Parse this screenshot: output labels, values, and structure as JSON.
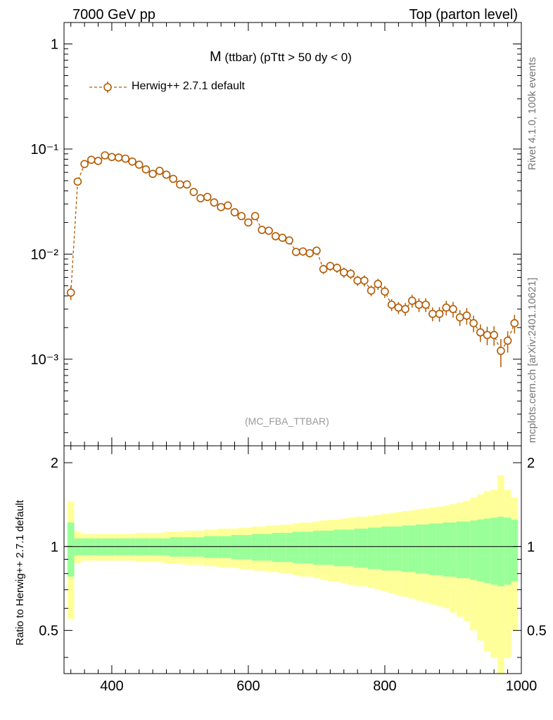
{
  "header": {
    "left": "7000 GeV pp",
    "right": "Top (parton level)"
  },
  "sidebar": {
    "rivet": "Rivet 4.1.0,  100k events",
    "source": "mcplots.cern.ch [arXiv:2401.10621]"
  },
  "colors": {
    "series": "#b35900",
    "band_outer": "#ffff99",
    "band_inner": "#99ff99"
  },
  "chart_data": {
    "type": "line",
    "title_main": "M",
    "title_sub": "(ttbar) (pTtt > 50 dy < 0)",
    "analysis_tag": "(MC_FBA_TTBAR)",
    "xlim": [
      330,
      1000
    ],
    "x_ticks": [
      "400",
      "600",
      "800",
      "1000"
    ],
    "upper": {
      "yscale": "log",
      "ylim": [
        0.00015,
        1.6
      ],
      "y_ticks": [
        "1",
        "10⁻¹",
        "10⁻²",
        "10⁻³"
      ],
      "series": [
        {
          "name": "Herwig++ 2.7.1 default",
          "x": [
            340,
            350,
            360,
            370,
            380,
            390,
            400,
            410,
            420,
            430,
            440,
            450,
            460,
            470,
            480,
            490,
            500,
            510,
            520,
            530,
            540,
            550,
            560,
            570,
            580,
            590,
            600,
            610,
            620,
            630,
            640,
            650,
            660,
            670,
            680,
            690,
            700,
            710,
            720,
            730,
            740,
            750,
            760,
            770,
            780,
            790,
            800,
            810,
            820,
            830,
            840,
            850,
            860,
            870,
            880,
            890,
            900,
            910,
            920,
            930,
            940,
            950,
            960,
            970,
            980,
            990
          ],
          "y": [
            0.0043,
            0.049,
            0.072,
            0.079,
            0.077,
            0.087,
            0.084,
            0.083,
            0.081,
            0.076,
            0.071,
            0.064,
            0.058,
            0.062,
            0.057,
            0.052,
            0.046,
            0.046,
            0.039,
            0.034,
            0.035,
            0.031,
            0.028,
            0.029,
            0.025,
            0.023,
            0.02,
            0.023,
            0.017,
            0.0167,
            0.0148,
            0.0143,
            0.0135,
            0.0105,
            0.0106,
            0.0102,
            0.0108,
            0.0072,
            0.0077,
            0.0074,
            0.0067,
            0.0065,
            0.0056,
            0.0056,
            0.0045,
            0.0052,
            0.0044,
            0.0033,
            0.0031,
            0.003,
            0.0036,
            0.0033,
            0.0033,
            0.0027,
            0.0027,
            0.0031,
            0.003,
            0.0025,
            0.0026,
            0.0022,
            0.0018,
            0.0017,
            0.0017,
            0.0012,
            0.0015,
            0.0022
          ],
          "yerr_rel": [
            0.15,
            0.04,
            0.04,
            0.04,
            0.04,
            0.04,
            0.04,
            0.04,
            0.04,
            0.04,
            0.05,
            0.05,
            0.05,
            0.05,
            0.05,
            0.05,
            0.05,
            0.05,
            0.05,
            0.06,
            0.06,
            0.06,
            0.06,
            0.06,
            0.06,
            0.07,
            0.07,
            0.07,
            0.07,
            0.08,
            0.08,
            0.08,
            0.08,
            0.09,
            0.09,
            0.09,
            0.09,
            0.1,
            0.1,
            0.1,
            0.11,
            0.11,
            0.11,
            0.12,
            0.12,
            0.12,
            0.13,
            0.13,
            0.13,
            0.14,
            0.14,
            0.15,
            0.15,
            0.15,
            0.16,
            0.16,
            0.17,
            0.17,
            0.18,
            0.18,
            0.19,
            0.2,
            0.21,
            0.3,
            0.23,
            0.2
          ]
        }
      ]
    },
    "lower": {
      "ylabel": "Ratio to Herwig++ 2.7.1 default",
      "ylim": [
        0.35,
        2.3
      ],
      "y_ticks": [
        "0.5",
        "1",
        "2"
      ],
      "band_inner_rel": [
        0.22,
        0.07,
        0.07,
        0.07,
        0.07,
        0.07,
        0.07,
        0.07,
        0.07,
        0.07,
        0.07,
        0.07,
        0.07,
        0.07,
        0.07,
        0.08,
        0.08,
        0.08,
        0.08,
        0.08,
        0.09,
        0.09,
        0.09,
        0.09,
        0.1,
        0.1,
        0.1,
        0.11,
        0.11,
        0.11,
        0.12,
        0.12,
        0.12,
        0.13,
        0.13,
        0.13,
        0.14,
        0.14,
        0.14,
        0.15,
        0.15,
        0.15,
        0.16,
        0.16,
        0.17,
        0.17,
        0.18,
        0.18,
        0.18,
        0.19,
        0.19,
        0.2,
        0.2,
        0.21,
        0.21,
        0.22,
        0.22,
        0.23,
        0.23,
        0.24,
        0.25,
        0.26,
        0.27,
        0.28,
        0.27,
        0.25
      ],
      "band_outer_rel": [
        0.45,
        0.13,
        0.11,
        0.11,
        0.11,
        0.11,
        0.11,
        0.11,
        0.11,
        0.11,
        0.12,
        0.12,
        0.12,
        0.12,
        0.13,
        0.13,
        0.13,
        0.14,
        0.14,
        0.14,
        0.15,
        0.15,
        0.16,
        0.16,
        0.16,
        0.17,
        0.17,
        0.18,
        0.18,
        0.19,
        0.19,
        0.2,
        0.2,
        0.21,
        0.22,
        0.22,
        0.23,
        0.24,
        0.25,
        0.25,
        0.26,
        0.27,
        0.28,
        0.28,
        0.29,
        0.3,
        0.31,
        0.32,
        0.33,
        0.34,
        0.35,
        0.36,
        0.37,
        0.38,
        0.39,
        0.4,
        0.42,
        0.44,
        0.46,
        0.5,
        0.54,
        0.58,
        0.6,
        0.8,
        0.6,
        0.5
      ]
    }
  }
}
